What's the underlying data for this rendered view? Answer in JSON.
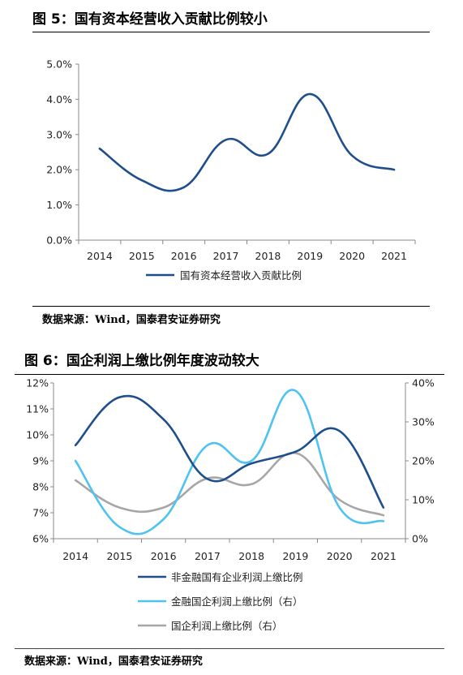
{
  "figure5": {
    "title": "图 5：国有资本经营收入贡献比例较小",
    "source": "数据来源：Wind，国泰君安证券研究"
  },
  "figure6": {
    "title": "图 6：国企利润上缴比例年度波动较大",
    "source": "数据来源：Wind，国泰君安证券研究"
  },
  "chart_data": [
    {
      "type": "line",
      "x": [
        "2014",
        "2015",
        "2016",
        "2017",
        "2018",
        "2019",
        "2020",
        "2021"
      ],
      "series": [
        {
          "name": "国有资本经营收入贡献比例",
          "color": "#1f4e8c",
          "values": [
            2.6,
            1.7,
            1.5,
            2.85,
            2.45,
            4.15,
            2.4,
            2.0
          ]
        }
      ],
      "ylim": [
        0,
        5
      ],
      "yticks": [
        "0.0%",
        "1.0%",
        "2.0%",
        "3.0%",
        "4.0%",
        "5.0%"
      ],
      "grid": false,
      "legend": "bottom"
    },
    {
      "type": "line",
      "x": [
        "2014",
        "2015",
        "2016",
        "2017",
        "2018",
        "2019",
        "2020",
        "2021"
      ],
      "series": [
        {
          "name": "非金融国有企业利润上缴比例",
          "color": "#1f4e8c",
          "axis": "left",
          "values": [
            9.6,
            11.45,
            10.6,
            8.3,
            8.9,
            9.35,
            10.15,
            7.2
          ]
        },
        {
          "name": "金融国企利润上缴比例（右）",
          "color": "#4fc3f0",
          "axis": "right",
          "values": [
            20,
            3,
            5,
            24,
            20,
            38,
            8,
            4.5
          ]
        },
        {
          "name": "国企利润上缴比例（右）",
          "color": "#a6a6a6",
          "axis": "right",
          "values": [
            15,
            8,
            8,
            15.5,
            14,
            22,
            10,
            6
          ]
        }
      ],
      "ylim_left": [
        6,
        12
      ],
      "yticks_left": [
        "6%",
        "7%",
        "8%",
        "9%",
        "10%",
        "11%",
        "12%"
      ],
      "ylim_right": [
        0,
        40
      ],
      "yticks_right": [
        "0%",
        "10%",
        "20%",
        "30%",
        "40%"
      ],
      "grid": false,
      "legend": "bottom"
    }
  ]
}
